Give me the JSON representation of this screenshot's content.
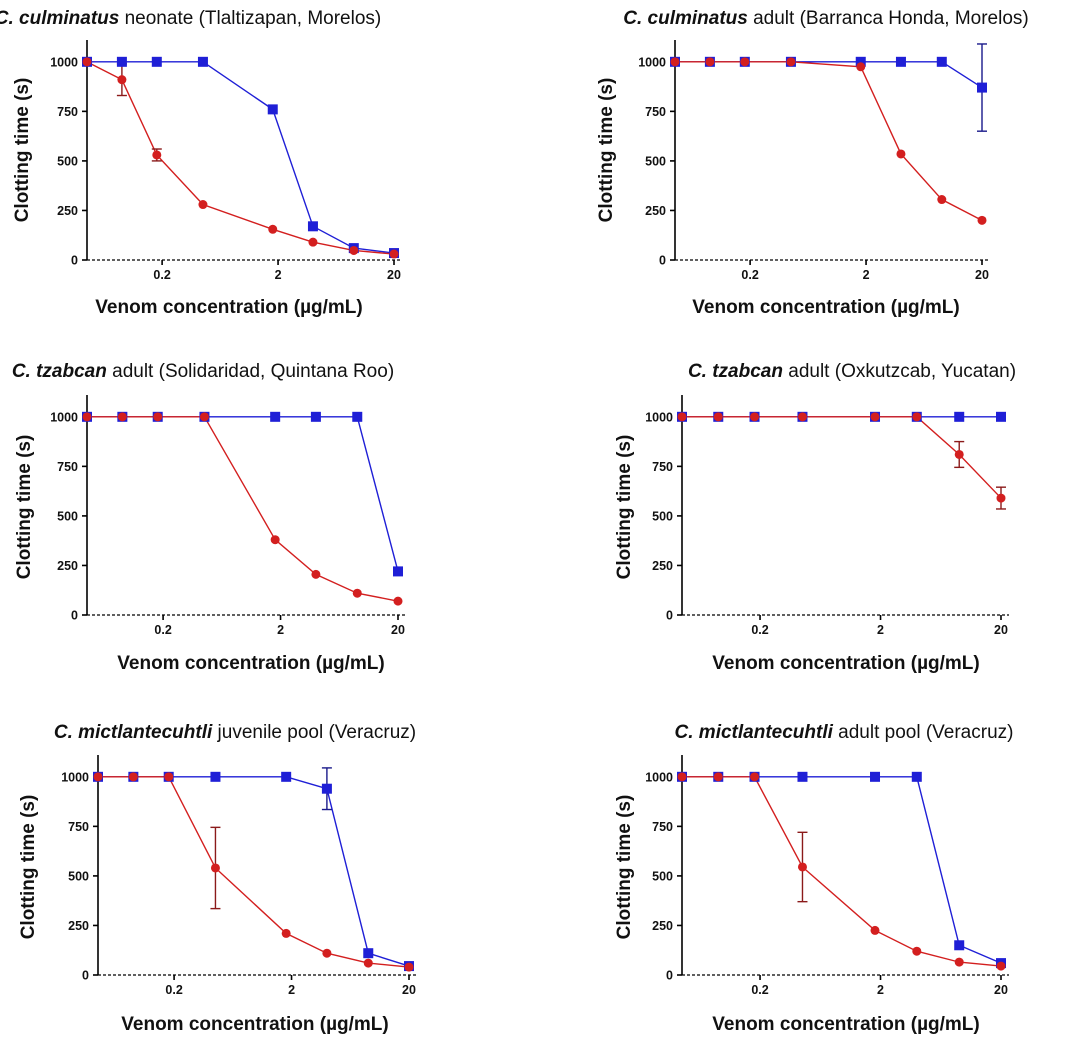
{
  "chart_data": [
    {
      "type": "line",
      "title_species": "C. culminatus",
      "title_rest": " neonate (Tlaltizapan, Morelos)",
      "xlabel": "Venom concentration (µg/mL)",
      "ylabel": "Clotting time (s)",
      "xscale": "log",
      "xticks": [
        "0.2",
        "2",
        "20"
      ],
      "yticks": [
        "0",
        "250",
        "500",
        "750",
        "1000"
      ],
      "ylim": [
        0,
        1100
      ],
      "series": [
        {
          "name": "blue",
          "color": "#1f1fd6",
          "marker": "square",
          "x": [
            0.045,
            0.09,
            0.18,
            0.45,
            1.8,
            4.0,
            9.0,
            20
          ],
          "y": [
            1000,
            1000,
            1000,
            1000,
            760,
            170,
            60,
            35
          ],
          "err": [
            0,
            0,
            0,
            0,
            0,
            0,
            0,
            0
          ]
        },
        {
          "name": "red",
          "color": "#d31f1f",
          "marker": "circle",
          "x": [
            0.045,
            0.09,
            0.18,
            0.45,
            1.8,
            4.0,
            9.0,
            20
          ],
          "y": [
            1000,
            910,
            530,
            280,
            155,
            90,
            48,
            30
          ],
          "err": [
            0,
            80,
            30,
            0,
            0,
            0,
            0,
            0
          ]
        }
      ]
    },
    {
      "type": "line",
      "title_species": "C. culminatus",
      "title_rest": " adult (Barranca Honda, Morelos)",
      "xlabel": "Venom concentration (µg/mL)",
      "ylabel": "Clotting time (s)",
      "xscale": "log",
      "xticks": [
        "0.2",
        "2",
        "20"
      ],
      "yticks": [
        "0",
        "250",
        "500",
        "750",
        "1000"
      ],
      "ylim": [
        0,
        1100
      ],
      "series": [
        {
          "name": "blue",
          "color": "#1f1fd6",
          "marker": "square",
          "x": [
            0.045,
            0.09,
            0.18,
            0.45,
            1.8,
            4.0,
            9.0,
            20
          ],
          "y": [
            1000,
            1000,
            1000,
            1000,
            1000,
            1000,
            1000,
            870
          ],
          "err": [
            0,
            0,
            0,
            0,
            0,
            0,
            0,
            220
          ]
        },
        {
          "name": "red",
          "color": "#d31f1f",
          "marker": "circle",
          "x": [
            0.045,
            0.09,
            0.18,
            0.45,
            1.8,
            4.0,
            9.0,
            20
          ],
          "y": [
            1000,
            1000,
            1000,
            1000,
            975,
            535,
            305,
            200
          ],
          "err": [
            0,
            0,
            0,
            0,
            0,
            0,
            0,
            0
          ]
        }
      ]
    },
    {
      "type": "line",
      "title_species": "C. tzabcan",
      "title_rest": " adult (Solidaridad, Quintana Roo)",
      "xlabel": "Venom concentration (µg/mL)",
      "ylabel": "Clotting time (s)",
      "xscale": "log",
      "xticks": [
        "0.2",
        "2",
        "20"
      ],
      "yticks": [
        "0",
        "250",
        "500",
        "750",
        "1000"
      ],
      "ylim": [
        0,
        1100
      ],
      "series": [
        {
          "name": "blue",
          "color": "#1f1fd6",
          "marker": "square",
          "x": [
            0.045,
            0.09,
            0.18,
            0.45,
            1.8,
            4.0,
            9.0,
            20
          ],
          "y": [
            1000,
            1000,
            1000,
            1000,
            1000,
            1000,
            1000,
            220
          ],
          "err": [
            0,
            0,
            0,
            0,
            0,
            0,
            0,
            0
          ]
        },
        {
          "name": "red",
          "color": "#d31f1f",
          "marker": "circle",
          "x": [
            0.045,
            0.09,
            0.18,
            0.45,
            1.8,
            4.0,
            9.0,
            20
          ],
          "y": [
            1000,
            1000,
            1000,
            1000,
            380,
            205,
            110,
            70
          ],
          "err": [
            0,
            0,
            0,
            0,
            0,
            0,
            0,
            0
          ]
        }
      ]
    },
    {
      "type": "line",
      "title_species": "C. tzabcan",
      "title_rest": " adult (Oxkutzcab, Yucatan)",
      "xlabel": "Venom concentration (µg/mL)",
      "ylabel": "Clotting time (s)",
      "xscale": "log",
      "xticks": [
        "0.2",
        "2",
        "20"
      ],
      "yticks": [
        "0",
        "250",
        "500",
        "750",
        "1000"
      ],
      "ylim": [
        0,
        1100
      ],
      "series": [
        {
          "name": "blue",
          "color": "#1f1fd6",
          "marker": "square",
          "x": [
            0.045,
            0.09,
            0.18,
            0.45,
            1.8,
            4.0,
            9.0,
            20
          ],
          "y": [
            1000,
            1000,
            1000,
            1000,
            1000,
            1000,
            1000,
            1000
          ],
          "err": [
            0,
            0,
            0,
            0,
            0,
            0,
            0,
            0
          ]
        },
        {
          "name": "red",
          "color": "#d31f1f",
          "marker": "circle",
          "x": [
            0.045,
            0.09,
            0.18,
            0.45,
            1.8,
            4.0,
            9.0,
            20
          ],
          "y": [
            1000,
            1000,
            1000,
            1000,
            1000,
            1000,
            810,
            590
          ],
          "err": [
            0,
            0,
            0,
            0,
            0,
            0,
            65,
            55
          ]
        }
      ]
    },
    {
      "type": "line",
      "title_species": "C. mictlantecuhtli",
      "title_rest": " juvenile pool (Veracruz)",
      "xlabel": "Venom concentration (µg/mL)",
      "ylabel": "Clotting time (s)",
      "xscale": "log",
      "xticks": [
        "0.2",
        "2",
        "20"
      ],
      "yticks": [
        "0",
        "250",
        "500",
        "750",
        "1000"
      ],
      "ylim": [
        0,
        1100
      ],
      "series": [
        {
          "name": "blue",
          "color": "#1f1fd6",
          "marker": "square",
          "x": [
            0.045,
            0.09,
            0.18,
            0.45,
            1.8,
            4.0,
            9.0,
            20
          ],
          "y": [
            1000,
            1000,
            1000,
            1000,
            1000,
            940,
            110,
            45
          ],
          "err": [
            0,
            0,
            0,
            0,
            0,
            105,
            0,
            0
          ]
        },
        {
          "name": "red",
          "color": "#d31f1f",
          "marker": "circle",
          "x": [
            0.045,
            0.09,
            0.18,
            0.45,
            1.8,
            4.0,
            9.0,
            20
          ],
          "y": [
            1000,
            1000,
            1000,
            540,
            210,
            110,
            60,
            40
          ],
          "err": [
            0,
            0,
            0,
            205,
            0,
            0,
            0,
            0
          ]
        }
      ]
    },
    {
      "type": "line",
      "title_species": "C. mictlantecuhtli",
      "title_rest": " adult pool (Veracruz)",
      "xlabel": "Venom concentration (µg/mL)",
      "ylabel": "Clotting time (s)",
      "xscale": "log",
      "xticks": [
        "0.2",
        "2",
        "20"
      ],
      "yticks": [
        "0",
        "250",
        "500",
        "750",
        "1000"
      ],
      "ylim": [
        0,
        1100
      ],
      "series": [
        {
          "name": "blue",
          "color": "#1f1fd6",
          "marker": "square",
          "x": [
            0.045,
            0.09,
            0.18,
            0.45,
            1.8,
            4.0,
            9.0,
            20
          ],
          "y": [
            1000,
            1000,
            1000,
            1000,
            1000,
            1000,
            150,
            60
          ],
          "err": [
            0,
            0,
            0,
            0,
            0,
            0,
            0,
            0
          ]
        },
        {
          "name": "red",
          "color": "#d31f1f",
          "marker": "circle",
          "x": [
            0.045,
            0.09,
            0.18,
            0.45,
            1.8,
            4.0,
            9.0,
            20
          ],
          "y": [
            1000,
            1000,
            1000,
            545,
            225,
            120,
            65,
            45
          ],
          "err": [
            0,
            0,
            0,
            175,
            0,
            0,
            0,
            0
          ]
        }
      ]
    }
  ]
}
